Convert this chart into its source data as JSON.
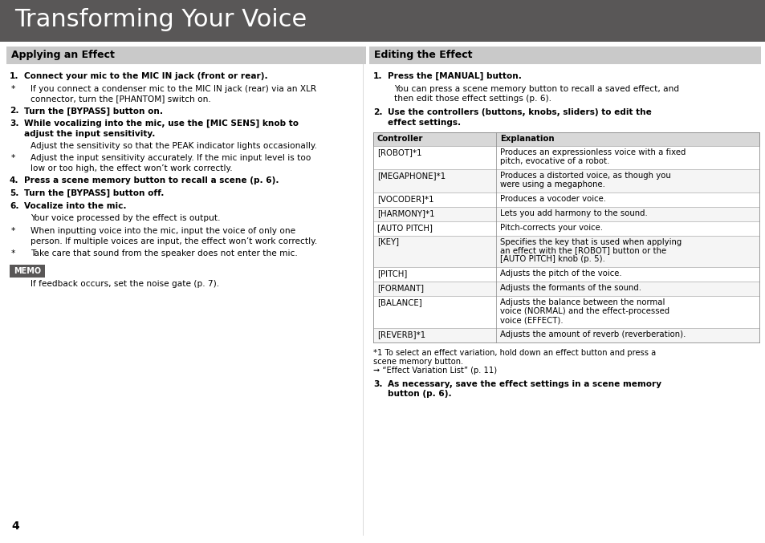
{
  "title": "Transforming Your Voice",
  "title_bg": "#595757",
  "title_color": "#ffffff",
  "section1_title": "Applying an Effect",
  "section2_title": "Editing the Effect",
  "section_header_bg": "#c9c9c9",
  "section_header_color": "#000000",
  "bg_color": "#ffffff",
  "page_number": "4",
  "left_steps": [
    {
      "num": "1.",
      "bold": true,
      "indent": false,
      "text": "Connect your mic to the MIC IN jack (front or rear)."
    },
    {
      "num": "*",
      "bold": false,
      "indent": true,
      "text": "If you connect a condenser mic to the MIC IN jack (rear) via an XLR\nconnector, turn the [PHANTOM] switch on."
    },
    {
      "num": "2.",
      "bold": true,
      "indent": false,
      "text": "Turn the [BYPASS] button on."
    },
    {
      "num": "3.",
      "bold": true,
      "indent": false,
      "text": "While vocalizing into the mic, use the [MIC SENS] knob to\nadjust the input sensitivity."
    },
    {
      "num": "",
      "bold": false,
      "indent": true,
      "text": "Adjust the sensitivity so that the PEAK indicator lights occasionally."
    },
    {
      "num": "*",
      "bold": false,
      "indent": true,
      "text": "Adjust the input sensitivity accurately. If the mic input level is too\nlow or too high, the effect won’t work correctly."
    },
    {
      "num": "4.",
      "bold": true,
      "indent": false,
      "text": "Press a scene memory button to recall a scene (p. 6)."
    },
    {
      "num": "5.",
      "bold": true,
      "indent": false,
      "text": "Turn the [BYPASS] button off."
    },
    {
      "num": "6.",
      "bold": true,
      "indent": false,
      "text": "Vocalize into the mic."
    },
    {
      "num": "",
      "bold": false,
      "indent": true,
      "text": "Your voice processed by the effect is output."
    },
    {
      "num": "*",
      "bold": false,
      "indent": true,
      "text": "When inputting voice into the mic, input the voice of only one\nperson. If multiple voices are input, the effect won’t work correctly."
    },
    {
      "num": "*",
      "bold": false,
      "indent": true,
      "text": "Take care that sound from the speaker does not enter the mic."
    }
  ],
  "memo_text": "If feedback occurs, set the noise gate (p. 7).",
  "right_steps_pre": [
    {
      "num": "1.",
      "bold": true,
      "indent": false,
      "text": "Press the [MANUAL] button."
    },
    {
      "num": "",
      "bold": false,
      "indent": true,
      "text": "You can press a scene memory button to recall a saved effect, and\nthen edit those effect settings (p. 6)."
    },
    {
      "num": "2.",
      "bold": true,
      "indent": false,
      "text": "Use the controllers (buttons, knobs, sliders) to edit the\neffect settings."
    }
  ],
  "table_header": [
    "Controller",
    "Explanation"
  ],
  "table_rows": [
    [
      "[ROBOT]*1",
      "Produces an expressionless voice with a fixed\npitch, evocative of a robot."
    ],
    [
      "[MEGAPHONE]*1",
      "Produces a distorted voice, as though you\nwere using a megaphone."
    ],
    [
      "[VOCODER]*1",
      "Produces a vocoder voice."
    ],
    [
      "[HARMONY]*1",
      "Lets you add harmony to the sound."
    ],
    [
      "[AUTO PITCH]",
      "Pitch-corrects your voice."
    ],
    [
      "[KEY]",
      "Specifies the key that is used when applying\nan effect with the [ROBOT] button or the\n[AUTO PITCH] knob (p. 5)."
    ],
    [
      "[PITCH]",
      "Adjusts the pitch of the voice."
    ],
    [
      "[FORMANT]",
      "Adjusts the formants of the sound."
    ],
    [
      "[BALANCE]",
      "Adjusts the balance between the normal\nvoice (NORMAL) and the effect-processed\nvoice (EFFECT)."
    ],
    [
      "[REVERB]*1",
      "Adjusts the amount of reverb (reverberation)."
    ]
  ],
  "footnote_lines": [
    "*1 To select an effect variation, hold down an effect button and press a",
    "scene memory button.",
    "➞ “Effect Variation List” (p. 11)"
  ],
  "step3": {
    "num": "3.",
    "bold": true,
    "text": "As necessary, save the effect settings in a scene memory\nbutton (p. 6)."
  }
}
